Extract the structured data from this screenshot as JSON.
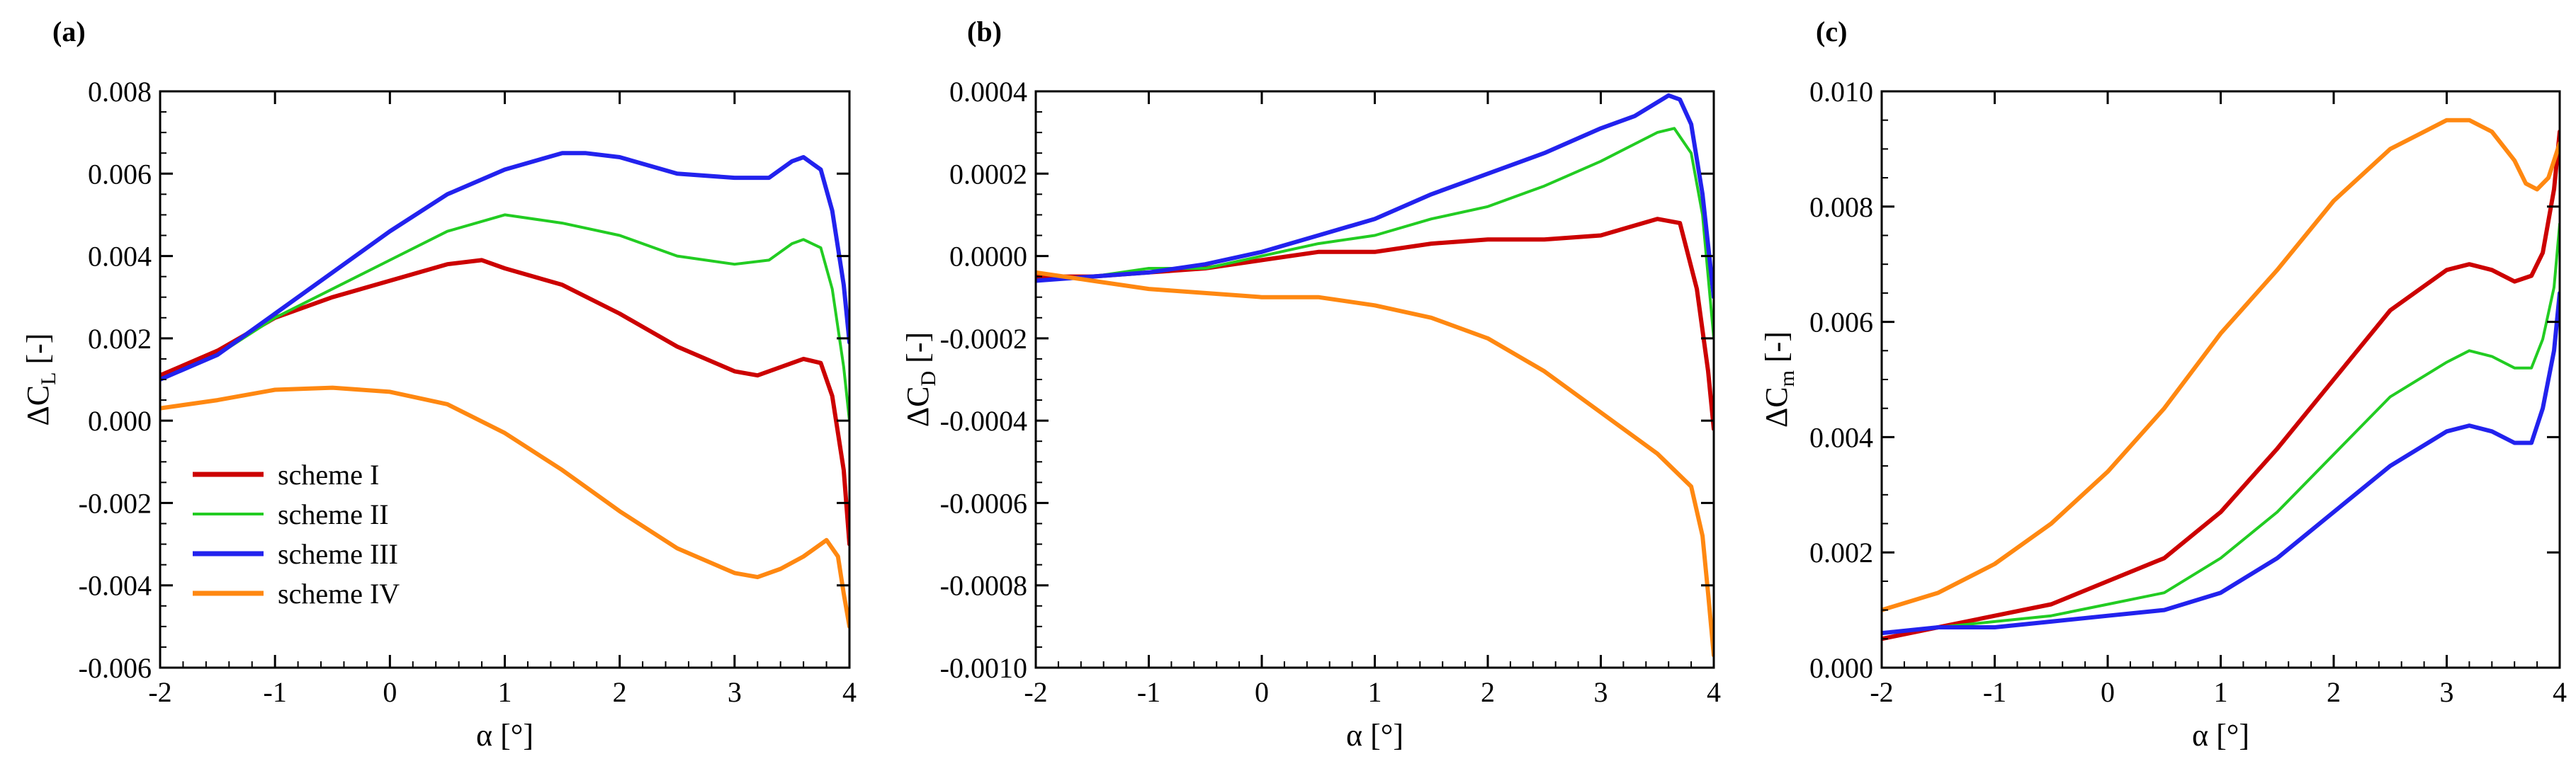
{
  "colors": {
    "scheme_I": "#cc0000",
    "scheme_II": "#22cc22",
    "scheme_III": "#2222ee",
    "scheme_IV": "#ff8811"
  },
  "legend": [
    {
      "label": "scheme I",
      "color_key": "scheme_I"
    },
    {
      "label": "scheme II",
      "color_key": "scheme_II"
    },
    {
      "label": "scheme III",
      "color_key": "scheme_III"
    },
    {
      "label": "scheme IV",
      "color_key": "scheme_IV"
    }
  ],
  "chart_data": [
    {
      "type": "line",
      "panel_label": "(a)",
      "xlabel": "α [°]",
      "ylabel_prefix": "ΔC",
      "ylabel_sub": "L",
      "ylabel_suffix": " [-]",
      "xlim": [
        -2,
        4
      ],
      "ylim": [
        -0.006,
        0.008
      ],
      "xticks": [
        -2,
        -1,
        0,
        1,
        2,
        3,
        4
      ],
      "xtick_labels": [
        "-2",
        "-1",
        "0",
        "1",
        "2",
        "3",
        "4"
      ],
      "yticks": [
        -0.006,
        -0.004,
        -0.002,
        0,
        0.002,
        0.004,
        0.006,
        0.008
      ],
      "ytick_labels": [
        "-0.006",
        "-0.004",
        "-0.002",
        "0.000",
        "0.002",
        "0.004",
        "0.006",
        "0.008"
      ],
      "series": [
        {
          "name": "scheme I",
          "color_key": "scheme_I",
          "x": [
            -2,
            -1.5,
            -1,
            -0.5,
            0,
            0.5,
            0.8,
            1,
            1.5,
            2,
            2.5,
            3,
            3.2,
            3.4,
            3.6,
            3.75,
            3.85,
            3.95,
            4
          ],
          "y": [
            0.0011,
            0.0017,
            0.0025,
            0.003,
            0.0034,
            0.0038,
            0.0039,
            0.0037,
            0.0033,
            0.0026,
            0.0018,
            0.0012,
            0.0011,
            0.0013,
            0.0015,
            0.0014,
            0.0006,
            -0.0012,
            -0.003
          ]
        },
        {
          "name": "scheme II",
          "color_key": "scheme_II",
          "x": [
            -2,
            -1.5,
            -1,
            -0.5,
            0,
            0.5,
            1,
            1.5,
            2,
            2.5,
            3,
            3.3,
            3.5,
            3.6,
            3.75,
            3.85,
            3.95,
            4
          ],
          "y": [
            0.001,
            0.0016,
            0.0025,
            0.0032,
            0.0039,
            0.0046,
            0.005,
            0.0048,
            0.0045,
            0.004,
            0.0038,
            0.0039,
            0.0043,
            0.0044,
            0.0042,
            0.0032,
            0.0013,
            0.0
          ]
        },
        {
          "name": "scheme III",
          "color_key": "scheme_III",
          "x": [
            -2,
            -1.5,
            -1,
            -0.5,
            0,
            0.5,
            1,
            1.5,
            1.7,
            2,
            2.5,
            3,
            3.3,
            3.5,
            3.6,
            3.75,
            3.85,
            3.95,
            4
          ],
          "y": [
            0.001,
            0.0016,
            0.0026,
            0.0036,
            0.0046,
            0.0055,
            0.0061,
            0.0065,
            0.0065,
            0.0064,
            0.006,
            0.0059,
            0.0059,
            0.0063,
            0.0064,
            0.0061,
            0.0051,
            0.0033,
            0.0019
          ]
        },
        {
          "name": "scheme IV",
          "color_key": "scheme_IV",
          "x": [
            -2,
            -1.5,
            -1,
            -0.5,
            0,
            0.5,
            1,
            1.5,
            2,
            2.5,
            3,
            3.2,
            3.4,
            3.6,
            3.8,
            3.9,
            3.95,
            4
          ],
          "y": [
            0.0003,
            0.0005,
            0.00075,
            0.0008,
            0.0007,
            0.0004,
            -0.0003,
            -0.0012,
            -0.0022,
            -0.0031,
            -0.0037,
            -0.0038,
            -0.0036,
            -0.0033,
            -0.0029,
            -0.0033,
            -0.0042,
            -0.005
          ]
        }
      ]
    },
    {
      "type": "line",
      "panel_label": "(b)",
      "xlabel": "α [°]",
      "ylabel_prefix": "ΔC",
      "ylabel_sub": "D",
      "ylabel_suffix": " [-]",
      "xlim": [
        -2,
        4
      ],
      "ylim": [
        -0.001,
        0.0004
      ],
      "xticks": [
        -2,
        -1,
        0,
        1,
        2,
        3,
        4
      ],
      "xtick_labels": [
        "-2",
        "-1",
        "0",
        "1",
        "2",
        "3",
        "4"
      ],
      "yticks": [
        -0.001,
        -0.0008,
        -0.0006,
        -0.0004,
        -0.0002,
        0,
        0.0002,
        0.0004
      ],
      "ytick_labels": [
        "-0.0010",
        "-0.0008",
        "-0.0006",
        "-0.0004",
        "-0.0002",
        "0.0000",
        "0.0002",
        "0.0004"
      ],
      "series": [
        {
          "name": "scheme I",
          "color_key": "scheme_I",
          "x": [
            -2,
            -1.5,
            -1,
            -0.5,
            0,
            0.5,
            1,
            1.5,
            2,
            2.5,
            3,
            3.5,
            3.7,
            3.85,
            3.95,
            4
          ],
          "y": [
            -5e-05,
            -5e-05,
            -4e-05,
            -3e-05,
            -1e-05,
            1e-05,
            1e-05,
            3e-05,
            4e-05,
            4e-05,
            5e-05,
            9e-05,
            8e-05,
            -8e-05,
            -0.00028,
            -0.00042
          ]
        },
        {
          "name": "scheme II",
          "color_key": "scheme_II",
          "x": [
            -2,
            -1.5,
            -1,
            -0.5,
            0,
            0.5,
            1,
            1.5,
            2,
            2.5,
            3,
            3.5,
            3.65,
            3.8,
            3.9,
            4
          ],
          "y": [
            -6e-05,
            -5e-05,
            -3e-05,
            -3e-05,
            0.0,
            3e-05,
            5e-05,
            9e-05,
            0.00012,
            0.00017,
            0.00023,
            0.0003,
            0.00031,
            0.00025,
            0.0001,
            -0.0002
          ]
        },
        {
          "name": "scheme III",
          "color_key": "scheme_III",
          "x": [
            -2,
            -1.5,
            -1,
            -0.5,
            0,
            0.5,
            1,
            1.5,
            2,
            2.5,
            3,
            3.3,
            3.6,
            3.7,
            3.8,
            3.9,
            4
          ],
          "y": [
            -6e-05,
            -5e-05,
            -4e-05,
            -2e-05,
            1e-05,
            5e-05,
            9e-05,
            0.00015,
            0.0002,
            0.00025,
            0.00031,
            0.00034,
            0.00039,
            0.00038,
            0.00032,
            0.00015,
            -0.0001
          ]
        },
        {
          "name": "scheme IV",
          "color_key": "scheme_IV",
          "x": [
            -2,
            -1.5,
            -1,
            -0.5,
            0,
            0.5,
            1,
            1.5,
            2,
            2.5,
            3,
            3.5,
            3.8,
            3.9,
            3.95,
            4
          ],
          "y": [
            -4e-05,
            -6e-05,
            -8e-05,
            -9e-05,
            -0.0001,
            -0.0001,
            -0.00012,
            -0.00015,
            -0.0002,
            -0.00028,
            -0.00038,
            -0.00048,
            -0.00056,
            -0.00068,
            -0.00082,
            -0.00097
          ]
        }
      ]
    },
    {
      "type": "line",
      "panel_label": "(c)",
      "xlabel": "α [°]",
      "ylabel_prefix": "ΔC",
      "ylabel_sub": "m",
      "ylabel_suffix": " [-]",
      "xlim": [
        -2,
        4
      ],
      "ylim": [
        0,
        0.01
      ],
      "xticks": [
        -2,
        -1,
        0,
        1,
        2,
        3,
        4
      ],
      "xtick_labels": [
        "-2",
        "-1",
        "0",
        "1",
        "2",
        "3",
        "4"
      ],
      "yticks": [
        0,
        0.002,
        0.004,
        0.006,
        0.008,
        0.01
      ],
      "ytick_labels": [
        "0.000",
        "0.002",
        "0.004",
        "0.006",
        "0.008",
        "0.010"
      ],
      "series": [
        {
          "name": "scheme I",
          "color_key": "scheme_I",
          "x": [
            -2,
            -1.5,
            -1,
            -0.5,
            0,
            0.5,
            1,
            1.5,
            2,
            2.5,
            3,
            3.2,
            3.4,
            3.6,
            3.75,
            3.85,
            3.95,
            4
          ],
          "y": [
            0.0005,
            0.0007,
            0.0009,
            0.0011,
            0.0015,
            0.0019,
            0.0027,
            0.0038,
            0.005,
            0.0062,
            0.0069,
            0.007,
            0.0069,
            0.0067,
            0.0068,
            0.0072,
            0.0083,
            0.0093
          ]
        },
        {
          "name": "scheme II",
          "color_key": "scheme_II",
          "x": [
            -2,
            -1.5,
            -1,
            -0.5,
            0,
            0.5,
            1,
            1.5,
            2,
            2.5,
            3,
            3.2,
            3.4,
            3.6,
            3.75,
            3.85,
            3.95,
            4
          ],
          "y": [
            0.0006,
            0.0007,
            0.0008,
            0.0009,
            0.0011,
            0.0013,
            0.0019,
            0.0027,
            0.0037,
            0.0047,
            0.0053,
            0.0055,
            0.0054,
            0.0052,
            0.0052,
            0.0057,
            0.0066,
            0.0077
          ]
        },
        {
          "name": "scheme III",
          "color_key": "scheme_III",
          "x": [
            -2,
            -1.5,
            -1,
            -0.5,
            0,
            0.5,
            1,
            1.5,
            2,
            2.5,
            3,
            3.2,
            3.4,
            3.6,
            3.75,
            3.85,
            3.95,
            4
          ],
          "y": [
            0.0006,
            0.0007,
            0.0007,
            0.0008,
            0.0009,
            0.001,
            0.0013,
            0.0019,
            0.0027,
            0.0035,
            0.0041,
            0.0042,
            0.0041,
            0.0039,
            0.0039,
            0.0045,
            0.0055,
            0.0065
          ]
        },
        {
          "name": "scheme IV",
          "color_key": "scheme_IV",
          "x": [
            -2,
            -1.5,
            -1,
            -0.5,
            0,
            0.5,
            1,
            1.5,
            2,
            2.5,
            3,
            3.2,
            3.4,
            3.6,
            3.7,
            3.8,
            3.9,
            4
          ],
          "y": [
            0.001,
            0.0013,
            0.0018,
            0.0025,
            0.0034,
            0.0045,
            0.0058,
            0.0069,
            0.0081,
            0.009,
            0.0095,
            0.0095,
            0.0093,
            0.0088,
            0.0084,
            0.0083,
            0.0085,
            0.0091
          ]
        }
      ]
    }
  ]
}
